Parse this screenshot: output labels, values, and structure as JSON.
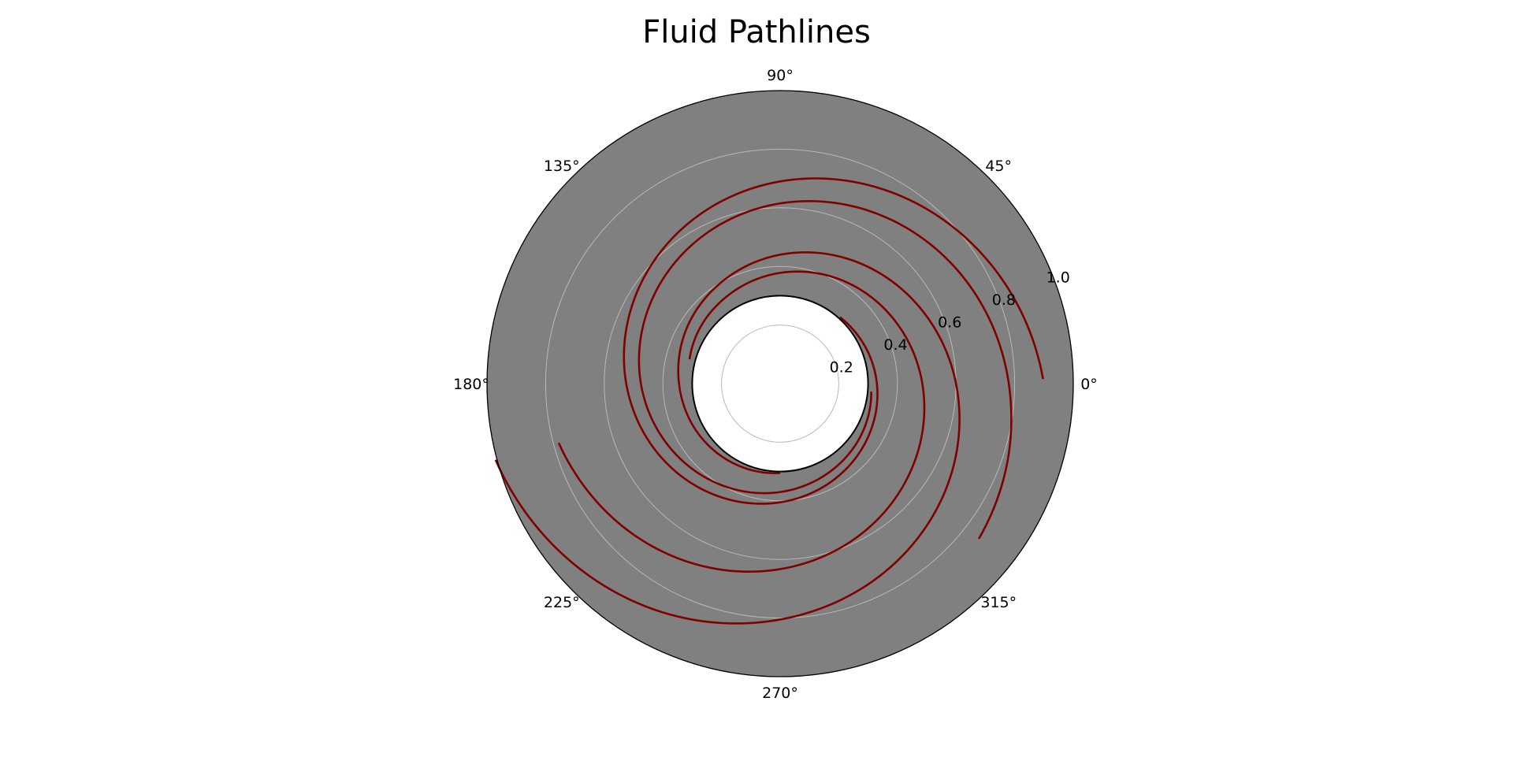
{
  "chart_data": {
    "type": "line",
    "subtype": "polar",
    "title": "Fluid Pathlines",
    "xlabel": "",
    "ylabel": "",
    "theta_tick_labels": [
      "0°",
      "45°",
      "90°",
      "135°",
      "180°",
      "225°",
      "270°",
      "315°"
    ],
    "theta_ticks_deg": [
      0,
      45,
      90,
      135,
      180,
      225,
      270,
      315
    ],
    "r_tick_labels": [
      "0.2",
      "0.4",
      "0.6",
      "0.8",
      "1.0"
    ],
    "r_ticks": [
      0.2,
      0.4,
      0.6,
      0.8,
      1.0
    ],
    "rlim": [
      0,
      1.0
    ],
    "inner_hole_radius": 0.3,
    "grid": true,
    "legend": "none",
    "colors": {
      "background": "#808080",
      "grid": "#b9b9b9",
      "pathline": "#800000",
      "hole": "#ffffff"
    },
    "series": [
      {
        "theta_deg": [
          355,
          330,
          300,
          270,
          240,
          210,
          180,
          150,
          120,
          90,
          60,
          30,
          0,
          -20,
          -38
        ],
        "r": [
          0.312,
          0.326,
          0.345,
          0.37,
          0.4,
          0.435,
          0.475,
          0.518,
          0.565,
          0.615,
          0.668,
          0.723,
          0.78,
          0.822,
          0.86
        ]
      },
      {
        "theta_deg": [
          270,
          240,
          210,
          180,
          150,
          120,
          90,
          60,
          30,
          0,
          -30,
          -60,
          -90,
          -120,
          -150,
          -165
        ],
        "r": [
          0.305,
          0.315,
          0.328,
          0.345,
          0.37,
          0.4,
          0.44,
          0.487,
          0.54,
          0.6,
          0.665,
          0.733,
          0.805,
          0.885,
          0.965,
          1.005
        ]
      },
      {
        "theta_deg": [
          165,
          150,
          120,
          90,
          60,
          30,
          0,
          -30,
          -60,
          -90,
          -120,
          -150,
          -165
        ],
        "r": [
          0.32,
          0.33,
          0.35,
          0.378,
          0.41,
          0.445,
          0.485,
          0.53,
          0.58,
          0.633,
          0.69,
          0.75,
          0.782
        ]
      },
      {
        "theta_deg": [
          48,
          30,
          0,
          -30,
          -60,
          -90,
          -120,
          -150,
          -180,
          -210,
          -240,
          -270,
          -300,
          -330,
          -359
        ],
        "r": [
          0.305,
          0.313,
          0.33,
          0.35,
          0.375,
          0.405,
          0.44,
          0.48,
          0.525,
          0.575,
          0.63,
          0.69,
          0.755,
          0.825,
          0.897
        ]
      }
    ]
  }
}
